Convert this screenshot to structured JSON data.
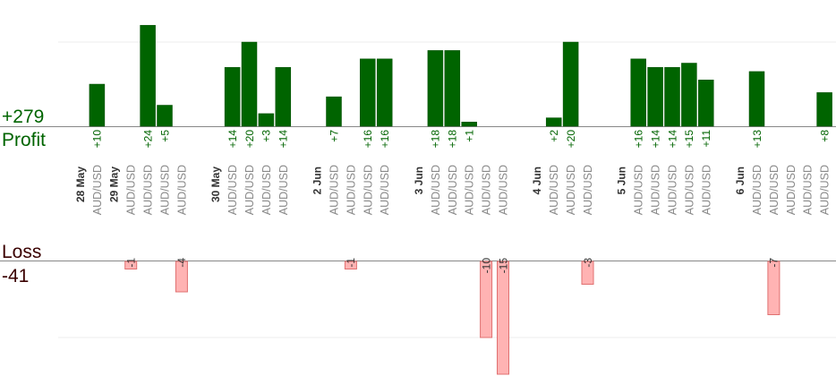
{
  "summary": {
    "profit_total": "+279",
    "profit_label": "Profit",
    "loss_label": "Loss",
    "loss_total": "-41"
  },
  "colors": {
    "profit": "#006400",
    "profit_dark": "#004d00",
    "loss_fill": "#ffb3b3",
    "loss_stroke": "#e07070",
    "pair_text": "#888888",
    "date_text": "#333333",
    "axis": "#888888",
    "grid": "#eeeeee"
  },
  "chart_data": {
    "type": "bar",
    "profit_axis_top": 20,
    "loss_axis_bottom": -10,
    "slots": [
      {
        "pair": "",
        "date": "28 May",
        "profit": null,
        "loss": null
      },
      {
        "pair": "AUD/USD",
        "date": "",
        "profit": 10,
        "loss": null
      },
      {
        "pair": "",
        "date": "29 May",
        "profit": null,
        "loss": null
      },
      {
        "pair": "AUD/USD",
        "date": "",
        "profit": null,
        "loss": -1
      },
      {
        "pair": "AUD/USD",
        "date": "",
        "profit": 24,
        "loss": null
      },
      {
        "pair": "AUD/USD",
        "date": "",
        "profit": 5,
        "loss": null
      },
      {
        "pair": "AUD/USD",
        "date": "",
        "profit": null,
        "loss": -4
      },
      {
        "pair": "",
        "date": "",
        "profit": null,
        "loss": null
      },
      {
        "pair": "",
        "date": "30 May",
        "profit": null,
        "loss": null
      },
      {
        "pair": "AUD/USD",
        "date": "",
        "profit": 14,
        "loss": null
      },
      {
        "pair": "AUD/USD",
        "date": "",
        "profit": 20,
        "loss": null
      },
      {
        "pair": "AUD/USD",
        "date": "",
        "profit": 3,
        "loss": null
      },
      {
        "pair": "AUD/USD",
        "date": "",
        "profit": 14,
        "loss": null
      },
      {
        "pair": "",
        "date": "",
        "profit": null,
        "loss": null
      },
      {
        "pair": "",
        "date": "2 Jun",
        "profit": null,
        "loss": null
      },
      {
        "pair": "AUD/USD",
        "date": "",
        "profit": 7,
        "loss": null
      },
      {
        "pair": "AUD/USD",
        "date": "",
        "profit": null,
        "loss": -1
      },
      {
        "pair": "AUD/USD",
        "date": "",
        "profit": 16,
        "loss": null
      },
      {
        "pair": "AUD/USD",
        "date": "",
        "profit": 16,
        "loss": null
      },
      {
        "pair": "",
        "date": "",
        "profit": null,
        "loss": null
      },
      {
        "pair": "",
        "date": "3 Jun",
        "profit": null,
        "loss": null
      },
      {
        "pair": "AUD/USD",
        "date": "",
        "profit": 18,
        "loss": null
      },
      {
        "pair": "AUD/USD",
        "date": "",
        "profit": 18,
        "loss": null
      },
      {
        "pair": "AUD/USD",
        "date": "",
        "profit": 1,
        "loss": null
      },
      {
        "pair": "AUD/USD",
        "date": "",
        "profit": null,
        "loss": -10
      },
      {
        "pair": "AUD/USD",
        "date": "",
        "profit": null,
        "loss": -15
      },
      {
        "pair": "",
        "date": "",
        "profit": null,
        "loss": null
      },
      {
        "pair": "",
        "date": "4 Jun",
        "profit": null,
        "loss": null
      },
      {
        "pair": "AUD/USD",
        "date": "",
        "profit": 2,
        "loss": null
      },
      {
        "pair": "AUD/USD",
        "date": "",
        "profit": 20,
        "loss": null
      },
      {
        "pair": "AUD/USD",
        "date": "",
        "profit": null,
        "loss": -3
      },
      {
        "pair": "",
        "date": "",
        "profit": null,
        "loss": null
      },
      {
        "pair": "",
        "date": "5 Jun",
        "profit": null,
        "loss": null
      },
      {
        "pair": "AUD/USD",
        "date": "",
        "profit": 16,
        "loss": null
      },
      {
        "pair": "AUD/USD",
        "date": "",
        "profit": 14,
        "loss": null
      },
      {
        "pair": "AUD/USD",
        "date": "",
        "profit": 14,
        "loss": null
      },
      {
        "pair": "AUD/USD",
        "date": "",
        "profit": 15,
        "loss": null
      },
      {
        "pair": "AUD/USD",
        "date": "",
        "profit": 11,
        "loss": null
      },
      {
        "pair": "",
        "date": "",
        "profit": null,
        "loss": null
      },
      {
        "pair": "",
        "date": "6 Jun",
        "profit": null,
        "loss": null
      },
      {
        "pair": "AUD/USD",
        "date": "",
        "profit": 13,
        "loss": null
      },
      {
        "pair": "AUD/USD",
        "date": "",
        "profit": null,
        "loss": -7
      },
      {
        "pair": "AUD/USD",
        "date": "",
        "profit": null,
        "loss": null
      },
      {
        "pair": "AUD/USD",
        "date": "",
        "profit": null,
        "loss": null
      },
      {
        "pair": "AUD/USD",
        "date": "",
        "profit": 8,
        "loss": null
      }
    ]
  }
}
